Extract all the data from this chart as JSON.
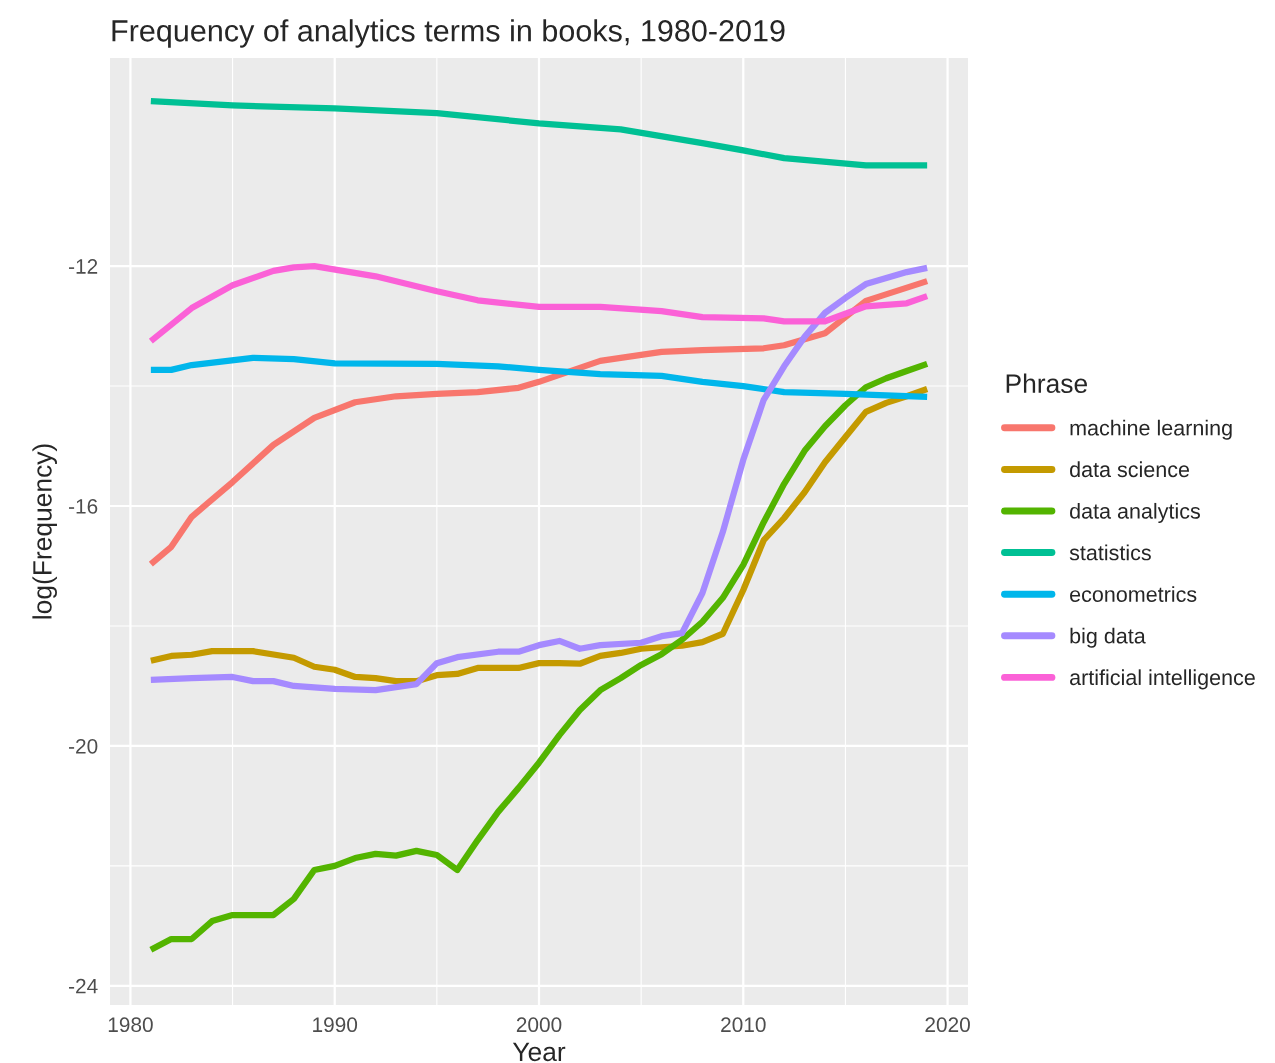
{
  "chart_data": {
    "type": "line",
    "title": "Frequency of analytics terms in books, 1980-2019",
    "xlabel": "Year",
    "ylabel": "log(Frequency)",
    "legend_title": "Phrase",
    "legend": "right",
    "grid": true,
    "marker": "none",
    "line_style": "solid",
    "xlim": [
      1979,
      2021
    ],
    "xticks": [
      1980,
      1990,
      2000,
      2010,
      2020
    ],
    "ylim": [
      -24.32,
      -8.53
    ],
    "yticks": [
      -24,
      -20,
      -16,
      -12
    ],
    "series": [
      {
        "name": "machine learning",
        "color": "#F8766D",
        "x": [
          1981,
          1982,
          1983,
          1985,
          1987,
          1989,
          1991,
          1993,
          1995,
          1997,
          1999,
          2000,
          2003,
          2006,
          2008,
          2011,
          2012,
          2014,
          2016,
          2019
        ],
        "values": [
          -16.97,
          -16.68,
          -16.18,
          -15.6,
          -14.98,
          -14.53,
          -14.27,
          -14.17,
          -14.13,
          -14.1,
          -14.03,
          -13.93,
          -13.58,
          -13.43,
          -13.4,
          -13.37,
          -13.32,
          -13.12,
          -12.58,
          -12.25
        ]
      },
      {
        "name": "data science",
        "color": "#C49A00",
        "x": [
          1981,
          1982,
          1983,
          1984,
          1986,
          1988,
          1989,
          1990,
          1991,
          1992,
          1993,
          1994,
          1995,
          1996,
          1997,
          1999,
          2000,
          2001,
          2002,
          2003,
          2004,
          2005,
          2007,
          2008,
          2009,
          2010,
          2011,
          2012,
          2013,
          2014,
          2015,
          2016,
          2017,
          2018,
          2019
        ],
        "values": [
          -18.58,
          -18.5,
          -18.48,
          -18.42,
          -18.42,
          -18.53,
          -18.68,
          -18.73,
          -18.85,
          -18.87,
          -18.92,
          -18.92,
          -18.82,
          -18.8,
          -18.7,
          -18.7,
          -18.62,
          -18.62,
          -18.63,
          -18.5,
          -18.45,
          -18.38,
          -18.33,
          -18.27,
          -18.13,
          -17.4,
          -16.57,
          -16.2,
          -15.77,
          -15.27,
          -14.85,
          -14.43,
          -14.28,
          -14.17,
          -14.05
        ]
      },
      {
        "name": "data analytics",
        "color": "#53B400",
        "x": [
          1981,
          1982,
          1983,
          1984,
          1985,
          1986,
          1987,
          1988,
          1989,
          1990,
          1991,
          1992,
          1993,
          1994,
          1995,
          1996,
          1997,
          1998,
          1999,
          2000,
          2001,
          2002,
          2003,
          2004,
          2005,
          2006,
          2007,
          2008,
          2009,
          2010,
          2011,
          2012,
          2013,
          2014,
          2015,
          2016,
          2017,
          2018,
          2019
        ],
        "values": [
          -23.4,
          -23.22,
          -23.22,
          -22.92,
          -22.82,
          -22.82,
          -22.82,
          -22.55,
          -22.07,
          -22.0,
          -21.87,
          -21.8,
          -21.83,
          -21.75,
          -21.82,
          -22.07,
          -21.57,
          -21.1,
          -20.7,
          -20.28,
          -19.82,
          -19.4,
          -19.07,
          -18.87,
          -18.65,
          -18.47,
          -18.23,
          -17.93,
          -17.53,
          -16.98,
          -16.27,
          -15.63,
          -15.08,
          -14.67,
          -14.32,
          -14.02,
          -13.87,
          -13.75,
          -13.63
        ]
      },
      {
        "name": "statistics",
        "color": "#00C094",
        "x": [
          1981,
          1985,
          1990,
          1995,
          2000,
          2004,
          2008,
          2010,
          2012,
          2016,
          2019
        ],
        "values": [
          -9.25,
          -9.32,
          -9.37,
          -9.45,
          -9.62,
          -9.72,
          -9.95,
          -10.07,
          -10.2,
          -10.32,
          -10.32
        ]
      },
      {
        "name": "econometrics",
        "color": "#00B6EB",
        "x": [
          1981,
          1982,
          1983,
          1986,
          1988,
          1990,
          1995,
          1998,
          2000,
          2003,
          2006,
          2008,
          2010,
          2012,
          2015,
          2019
        ],
        "values": [
          -13.73,
          -13.73,
          -13.65,
          -13.53,
          -13.55,
          -13.62,
          -13.63,
          -13.67,
          -13.73,
          -13.8,
          -13.83,
          -13.93,
          -14.0,
          -14.1,
          -14.13,
          -14.18
        ]
      },
      {
        "name": "big data",
        "color": "#A58AFF",
        "x": [
          1981,
          1983,
          1985,
          1986,
          1987,
          1988,
          1990,
          1992,
          1994,
          1995,
          1996,
          1998,
          1999,
          2000,
          2001,
          2002,
          2003,
          2005,
          2006,
          2007,
          2008,
          2009,
          2010,
          2011,
          2012,
          2013,
          2014,
          2015,
          2016,
          2018,
          2019
        ],
        "values": [
          -18.9,
          -18.87,
          -18.85,
          -18.92,
          -18.92,
          -19.0,
          -19.05,
          -19.07,
          -18.97,
          -18.62,
          -18.52,
          -18.43,
          -18.43,
          -18.32,
          -18.25,
          -18.38,
          -18.32,
          -18.28,
          -18.17,
          -18.12,
          -17.45,
          -16.43,
          -15.23,
          -14.23,
          -13.67,
          -13.18,
          -12.78,
          -12.53,
          -12.3,
          -12.1,
          -12.03
        ]
      },
      {
        "name": "artificial intelligence",
        "color": "#FB61D7",
        "x": [
          1981,
          1983,
          1985,
          1987,
          1988,
          1989,
          1992,
          1995,
          1997,
          2000,
          2003,
          2006,
          2008,
          2011,
          2012,
          2014,
          2016,
          2018,
          2019
        ],
        "values": [
          -13.25,
          -12.7,
          -12.32,
          -12.08,
          -12.02,
          -12.0,
          -12.17,
          -12.42,
          -12.57,
          -12.68,
          -12.68,
          -12.75,
          -12.85,
          -12.87,
          -12.92,
          -12.92,
          -12.67,
          -12.62,
          -12.5
        ]
      }
    ]
  }
}
